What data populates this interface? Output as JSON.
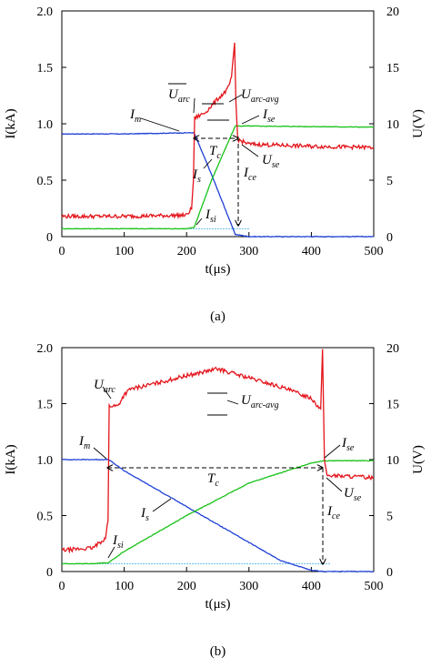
{
  "chart_data": [
    {
      "type": "line",
      "caption": "(a)",
      "xlabel": "t(μs)",
      "ylabel_left": "I(kA)",
      "ylabel_right": "U(V)",
      "xlim": [
        0,
        500
      ],
      "ylim_left": [
        0,
        2.0
      ],
      "ylim_right": [
        0,
        20
      ],
      "xticks": [
        "0",
        "100",
        "200",
        "300",
        "400",
        "500"
      ],
      "yticks_left": [
        "0",
        "0.5",
        "1.0",
        "1.5",
        "2.0"
      ],
      "yticks_right": [
        "0",
        "5",
        "10",
        "15",
        "20"
      ],
      "colors": {
        "Im": "#1f3fd6",
        "Is": "#17c217",
        "U": "#e4141b",
        "Isi_ref": "#2aa7e8"
      },
      "series": [
        {
          "id": "Im",
          "axis": "left",
          "points": [
            [
              0,
              0.91
            ],
            [
              100,
              0.91
            ],
            [
              200,
              0.92
            ],
            [
              212,
              0.92
            ],
            [
              240,
              0.55
            ],
            [
              278,
              0.02
            ],
            [
              300,
              0.0
            ],
            [
              500,
              0.0
            ]
          ]
        },
        {
          "id": "Is",
          "axis": "left",
          "points": [
            [
              0,
              0.07
            ],
            [
              200,
              0.07
            ],
            [
              212,
              0.08
            ],
            [
              240,
              0.5
            ],
            [
              278,
              0.98
            ],
            [
              300,
              0.98
            ],
            [
              500,
              0.97
            ]
          ]
        },
        {
          "id": "U",
          "axis": "right",
          "points": [
            [
              0,
              1.8
            ],
            [
              100,
              1.8
            ],
            [
              200,
              1.9
            ],
            [
              208,
              2.5
            ],
            [
              211,
              5.0
            ],
            [
              213,
              10.5
            ],
            [
              230,
              11.0
            ],
            [
              250,
              12.2
            ],
            [
              265,
              13.0
            ],
            [
              272,
              14.0
            ],
            [
              277,
              17.2
            ],
            [
              279,
              12.0
            ],
            [
              282,
              8.6
            ],
            [
              300,
              8.2
            ],
            [
              400,
              8.0
            ],
            [
              500,
              7.9
            ]
          ]
        }
      ],
      "annotations": [
        {
          "main": "I",
          "sub": "m"
        },
        {
          "main": "U",
          "sub": "arc"
        },
        {
          "main": "U",
          "sub": "arc-avg"
        },
        {
          "main": "I",
          "sub": "se"
        },
        {
          "main": "T",
          "sub": "c"
        },
        {
          "main": "U",
          "sub": "se"
        },
        {
          "main": "I",
          "sub": "s"
        },
        {
          "main": "I",
          "sub": "ce"
        },
        {
          "main": "I",
          "sub": "si"
        }
      ]
    },
    {
      "type": "line",
      "caption": "(b)",
      "xlabel": "t(μs)",
      "ylabel_left": "I(kA)",
      "ylabel_right": "U(V)",
      "xlim": [
        0,
        500
      ],
      "ylim_left": [
        0,
        2.0
      ],
      "ylim_right": [
        0,
        20
      ],
      "xticks": [
        "0",
        "100",
        "200",
        "300",
        "400",
        "500"
      ],
      "yticks_left": [
        "0",
        "0.5",
        "1.0",
        "1.5",
        "2.0"
      ],
      "yticks_right": [
        "0",
        "5",
        "10",
        "15",
        "20"
      ],
      "colors": {
        "Im": "#1f3fd6",
        "Is": "#17c217",
        "U": "#e4141b",
        "Isi_ref": "#2aa7e8"
      },
      "series": [
        {
          "id": "Im",
          "axis": "left",
          "points": [
            [
              0,
              1.0
            ],
            [
              50,
              1.0
            ],
            [
              75,
              1.0
            ],
            [
              100,
              0.9
            ],
            [
              200,
              0.58
            ],
            [
              300,
              0.26
            ],
            [
              350,
              0.1
            ],
            [
              400,
              0.01
            ],
            [
              420,
              0.0
            ],
            [
              500,
              0.0
            ]
          ]
        },
        {
          "id": "Is",
          "axis": "left",
          "points": [
            [
              0,
              0.07
            ],
            [
              50,
              0.07
            ],
            [
              75,
              0.08
            ],
            [
              100,
              0.18
            ],
            [
              200,
              0.5
            ],
            [
              300,
              0.79
            ],
            [
              400,
              0.97
            ],
            [
              420,
              0.99
            ],
            [
              500,
              0.99
            ]
          ]
        },
        {
          "id": "U",
          "axis": "right",
          "points": [
            [
              0,
              1.9
            ],
            [
              50,
              2.1
            ],
            [
              70,
              3.0
            ],
            [
              74,
              4.5
            ],
            [
              76,
              14.8
            ],
            [
              90,
              14.8
            ],
            [
              100,
              15.8
            ],
            [
              110,
              16.3
            ],
            [
              150,
              16.8
            ],
            [
              200,
              17.5
            ],
            [
              250,
              18.1
            ],
            [
              300,
              17.3
            ],
            [
              350,
              16.5
            ],
            [
              400,
              15.5
            ],
            [
              415,
              14.5
            ],
            [
              418,
              19.7
            ],
            [
              421,
              10.0
            ],
            [
              425,
              8.6
            ],
            [
              500,
              8.4
            ]
          ]
        }
      ],
      "annotations": [
        {
          "main": "U",
          "sub": "arc"
        },
        {
          "main": "U",
          "sub": "arc-avg"
        },
        {
          "main": "I",
          "sub": "m"
        },
        {
          "main": "I",
          "sub": "se"
        },
        {
          "main": "T",
          "sub": "c"
        },
        {
          "main": "U",
          "sub": "se"
        },
        {
          "main": "I",
          "sub": "s"
        },
        {
          "main": "I",
          "sub": "ce"
        },
        {
          "main": "I",
          "sub": "si"
        }
      ]
    }
  ]
}
